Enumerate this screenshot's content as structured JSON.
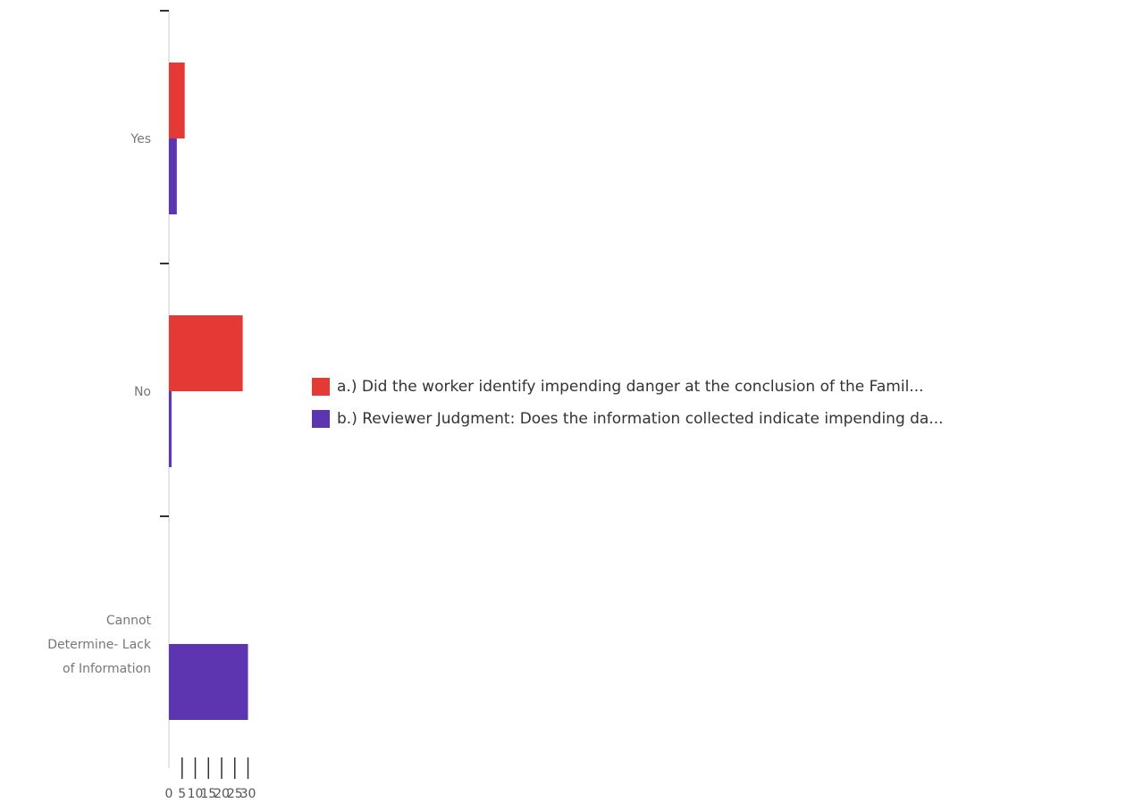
{
  "chart_data": {
    "type": "bar",
    "orientation": "horizontal",
    "categories": [
      "Yes",
      "No",
      "Cannot Determine- Lack of Information"
    ],
    "category_lines": [
      [
        "Yes"
      ],
      [
        "No"
      ],
      [
        "Cannot",
        "Determine- Lack",
        "of Information"
      ]
    ],
    "series": [
      {
        "name": "a.) Did the worker identify impending danger at the conclusion of the Famil...",
        "color": "#e53935",
        "values": [
          6,
          28,
          0
        ]
      },
      {
        "name": "b.) Reviewer Judgment: Does the information collected indicate impending da...",
        "color": "#5e35b1",
        "values": [
          3,
          1,
          30
        ]
      }
    ],
    "xlim": [
      0,
      30
    ],
    "xticks": [
      0,
      5,
      10,
      15,
      20,
      25,
      30
    ],
    "title": "",
    "xlabel": "",
    "ylabel": "",
    "legend_position": "right"
  }
}
